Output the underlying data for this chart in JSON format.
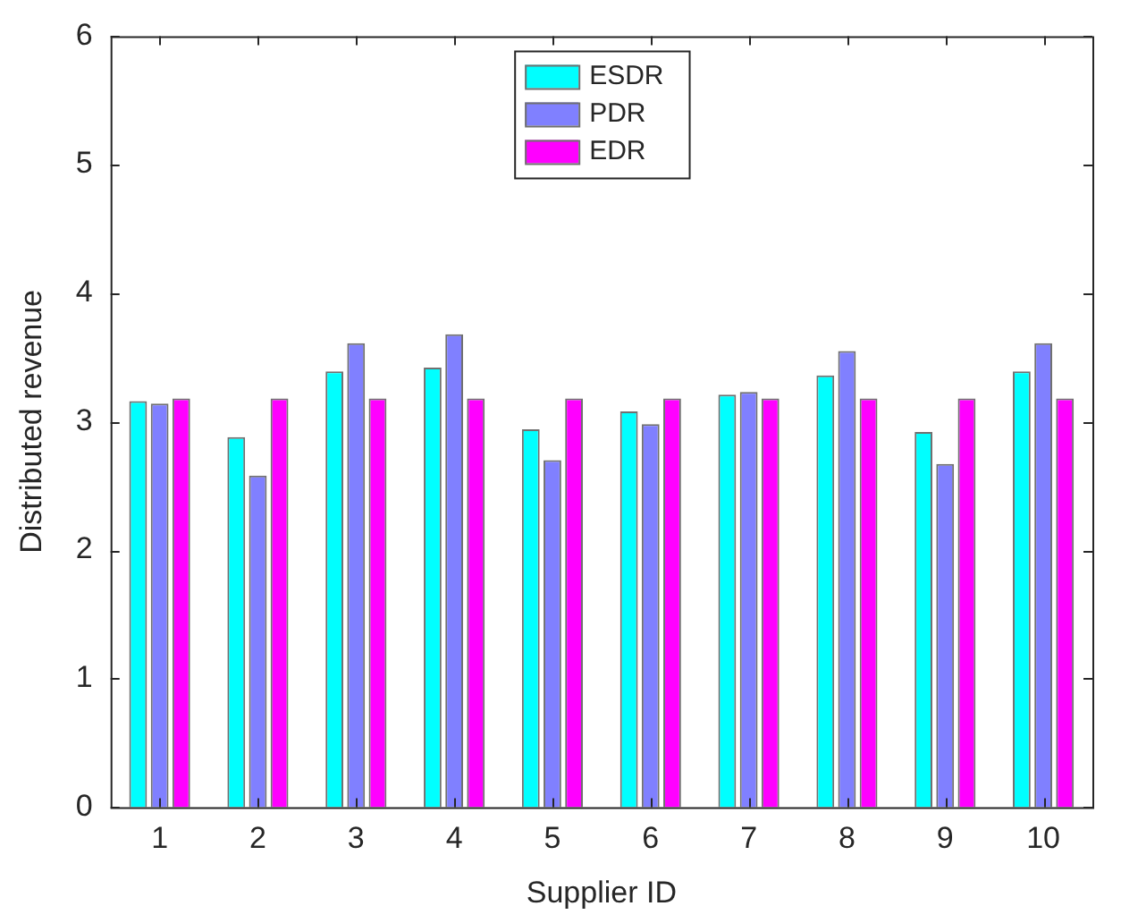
{
  "chart_data": {
    "type": "bar",
    "xlabel": "Supplier ID",
    "ylabel": "Distributed revenue",
    "categories": [
      "1",
      "2",
      "3",
      "4",
      "5",
      "6",
      "7",
      "8",
      "9",
      "10"
    ],
    "series": [
      {
        "name": "ESDR",
        "color": "#00ffff",
        "values": [
          3.16,
          2.88,
          3.39,
          3.42,
          2.94,
          3.08,
          3.21,
          3.36,
          2.92,
          3.39
        ]
      },
      {
        "name": "PDR",
        "color": "#8080ff",
        "values": [
          3.14,
          2.58,
          3.61,
          3.68,
          2.7,
          2.98,
          3.23,
          3.55,
          2.67,
          3.61
        ]
      },
      {
        "name": "EDR",
        "color": "#ff00ff",
        "values": [
          3.18,
          3.18,
          3.18,
          3.18,
          3.18,
          3.18,
          3.18,
          3.18,
          3.18,
          3.18
        ]
      }
    ],
    "ylim": [
      0,
      6
    ],
    "yticks": [
      0,
      1,
      2,
      3,
      4,
      5,
      6
    ],
    "grid": false,
    "legend": "top"
  }
}
